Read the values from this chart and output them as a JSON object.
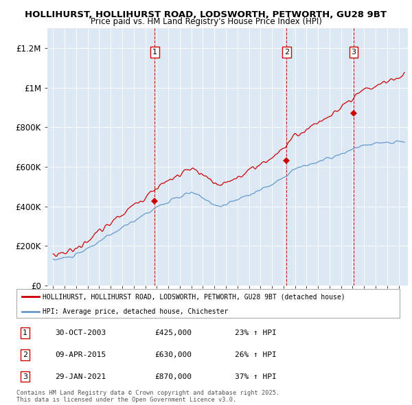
{
  "title1": "HOLLIHURST, HOLLIHURST ROAD, LODSWORTH, PETWORTH, GU28 9BT",
  "title2": "Price paid vs. HM Land Registry's House Price Index (HPI)",
  "background_color": "#dce9f5",
  "red_color": "#cc0000",
  "blue_color": "#6699cc",
  "ylim": [
    0,
    1300000
  ],
  "yticks": [
    0,
    200000,
    400000,
    600000,
    800000,
    1000000,
    1200000
  ],
  "ytick_labels": [
    "£0",
    "£200K",
    "£400K",
    "£600K",
    "£800K",
    "£1M",
    "£1.2M"
  ],
  "xmin": 1994.5,
  "xmax": 2025.8,
  "legend_label_red": "HOLLIHURST, HOLLIHURST ROAD, LODSWORTH, PETWORTH, GU28 9BT (detached house)",
  "legend_label_blue": "HPI: Average price, detached house, Chichester",
  "transaction_dates": [
    2003.83,
    2015.27,
    2021.08
  ],
  "transaction_prices": [
    425000,
    630000,
    870000
  ],
  "transaction_labels": [
    "1",
    "2",
    "3"
  ],
  "transaction_info": [
    {
      "num": "1",
      "date": "30-OCT-2003",
      "price": "£425,000",
      "hpi": "23% ↑ HPI"
    },
    {
      "num": "2",
      "date": "09-APR-2015",
      "price": "£630,000",
      "hpi": "26% ↑ HPI"
    },
    {
      "num": "3",
      "date": "29-JAN-2021",
      "price": "£870,000",
      "hpi": "37% ↑ HPI"
    }
  ],
  "footer": "Contains HM Land Registry data © Crown copyright and database right 2025.\nThis data is licensed under the Open Government Licence v3.0."
}
